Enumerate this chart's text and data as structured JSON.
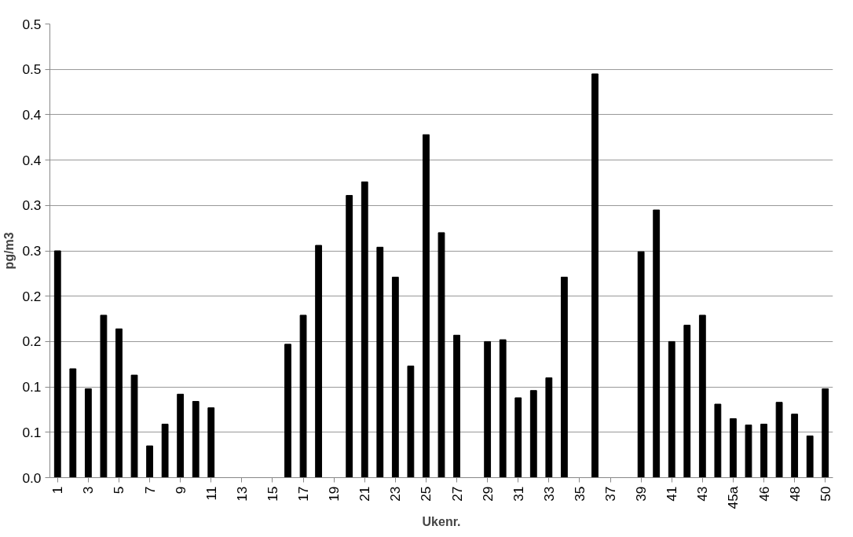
{
  "chart_data": {
    "type": "bar",
    "xlabel": "Ukenr.",
    "ylabel": "pg/m3",
    "categories": [
      "1",
      null,
      "3",
      null,
      "5",
      null,
      "7",
      null,
      "9",
      null,
      "11",
      null,
      "13",
      null,
      "15",
      null,
      "17",
      null,
      "19",
      null,
      "21",
      null,
      "23",
      null,
      "25",
      null,
      "27",
      null,
      "29",
      null,
      "31",
      null,
      "33",
      null,
      "35",
      null,
      "37",
      null,
      "39",
      null,
      "41",
      null,
      "43",
      null,
      "45a",
      null,
      "46",
      null,
      "48",
      null,
      "50"
    ],
    "values": [
      0.25,
      0.12,
      0.098,
      0.179,
      0.164,
      0.113,
      0.035,
      0.059,
      0.092,
      0.084,
      0.077,
      null,
      null,
      null,
      null,
      0.147,
      0.179,
      0.256,
      null,
      0.311,
      0.326,
      0.254,
      0.221,
      0.123,
      0.378,
      0.27,
      0.157,
      null,
      0.15,
      0.152,
      0.088,
      0.096,
      0.11,
      0.221,
      null,
      0.445,
      null,
      null,
      0.249,
      0.295,
      0.15,
      0.168,
      0.179,
      0.081,
      0.065,
      0.058,
      0.059,
      0.083,
      0.07,
      0.046,
      0.098
    ],
    "color": "#000000",
    "ylim": [
      0,
      0.5
    ],
    "yticks": [
      {
        "value": 0,
        "label": "0.0"
      },
      {
        "value": 0.05,
        "label": "0.1"
      },
      {
        "value": 0.1,
        "label": "0.1"
      },
      {
        "value": 0.15,
        "label": "0.2"
      },
      {
        "value": 0.2,
        "label": "0.2"
      },
      {
        "value": 0.25,
        "label": "0.3"
      },
      {
        "value": 0.3,
        "label": "0.3"
      },
      {
        "value": 0.35,
        "label": "0.4"
      },
      {
        "value": 0.4,
        "label": "0.4"
      },
      {
        "value": 0.45,
        "label": "0.5"
      },
      {
        "value": 0.5,
        "label": "0.5"
      }
    ],
    "grid": "y"
  }
}
